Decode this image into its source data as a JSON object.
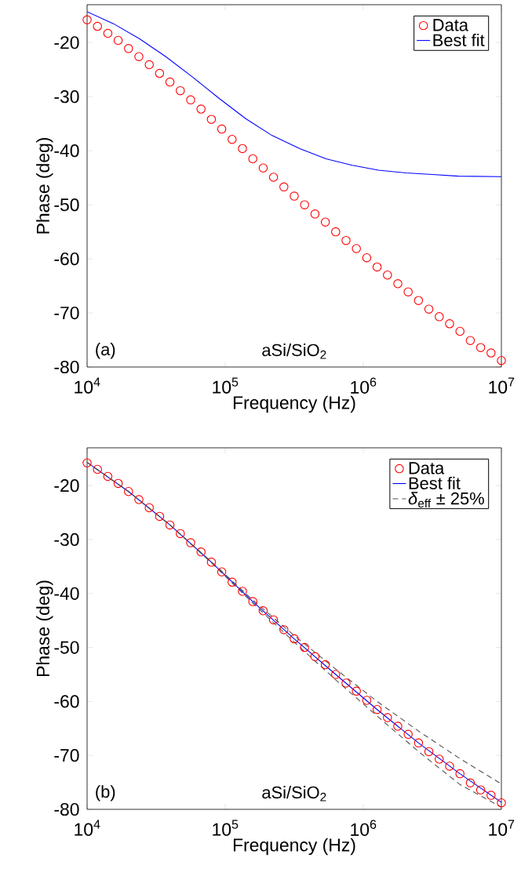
{
  "chart_data": [
    {
      "type": "scatter",
      "xlabel": "Frequency (Hz)",
      "ylabel": "Phase (deg)",
      "log": "x",
      "legend": "top right",
      "xlim": [
        10000,
        10000000
      ],
      "ylim": [
        -80,
        -13
      ],
      "xticks": [
        {
          "value": 10000,
          "label": "10$^{4}$"
        },
        {
          "value": 100000,
          "label": "10$^{5}$"
        },
        {
          "value": 1000000,
          "label": "10$^{6}$"
        },
        {
          "value": 10000000,
          "label": "10$^{7}$"
        }
      ],
      "yticks": [
        -80,
        -70,
        -60,
        -50,
        -40,
        -30,
        -20
      ],
      "annotations": [
        "(a)",
        "aSi/SiO$_{2}$"
      ],
      "x": [
        10000,
        11885,
        14125,
        16788,
        19953,
        23714,
        28184,
        33497,
        39811,
        47315,
        56234,
        66834,
        79433,
        94406,
        112202,
        133352,
        158489,
        188365,
        223872,
        266073,
        316228,
        375837,
        446684,
        530884,
        630957,
        749894,
        891251,
        1059254,
        1258925,
        1496236,
        1778279,
        2113489,
        2511886,
        2985383,
        3548134,
        4216965,
        5011872,
        5956621,
        7079458,
        8413951,
        10000000
      ],
      "series": [
        {
          "name": "Data",
          "color": "#ff0000",
          "marker": "circle",
          "values": [
            -15.8,
            -17.0,
            -18.3,
            -19.6,
            -21.1,
            -22.6,
            -24.1,
            -25.7,
            -27.3,
            -28.9,
            -30.6,
            -32.3,
            -34.2,
            -36.0,
            -37.9,
            -39.6,
            -41.5,
            -43.2,
            -44.9,
            -46.7,
            -48.4,
            -50.0,
            -51.7,
            -53.2,
            -55.0,
            -56.6,
            -58.1,
            -59.8,
            -61.5,
            -63.0,
            -64.6,
            -66.1,
            -67.7,
            -69.3,
            -70.7,
            -72.0,
            -73.4,
            -75.1,
            -76.4,
            -77.4,
            -78.8
          ]
        },
        {
          "name": "Best fit",
          "type": "line",
          "color": "#0000ff",
          "line_style": "solid",
          "x": [
            10000,
            15488,
            23988,
            37154,
            58884,
            91201,
            141254,
            218776,
            346737,
            537032,
            831764,
            1288250,
            2041738,
            3162278,
            4897788,
            10000000
          ],
          "values": [
            -14.3,
            -16.5,
            -19.3,
            -22.6,
            -26.5,
            -30.4,
            -34.1,
            -37.2,
            -39.6,
            -41.5,
            -42.7,
            -43.6,
            -44.1,
            -44.4,
            -44.7,
            -44.8
          ]
        }
      ]
    },
    {
      "type": "scatter",
      "xlabel": "Frequency (Hz)",
      "ylabel": "Phase (deg)",
      "log": "x",
      "legend": "top right",
      "xlim": [
        10000,
        10000000
      ],
      "ylim": [
        -80,
        -13
      ],
      "xticks": [
        {
          "value": 10000,
          "label": "10$^{4}$"
        },
        {
          "value": 100000,
          "label": "10$^{5}$"
        },
        {
          "value": 1000000,
          "label": "10$^{6}$"
        },
        {
          "value": 10000000,
          "label": "10$^{7}$"
        }
      ],
      "yticks": [
        -80,
        -70,
        -60,
        -50,
        -40,
        -30,
        -20
      ],
      "annotations": [
        "(b)",
        "aSi/SiO$_{2}$"
      ],
      "x": [
        10000,
        11885,
        14125,
        16788,
        19953,
        23714,
        28184,
        33497,
        39811,
        47315,
        56234,
        66834,
        79433,
        94406,
        112202,
        133352,
        158489,
        188365,
        223872,
        266073,
        316228,
        375837,
        446684,
        530884,
        630957,
        749894,
        891251,
        1059254,
        1258925,
        1496236,
        1778279,
        2113489,
        2511886,
        2985383,
        3548134,
        4216965,
        5011872,
        5956621,
        7079458,
        8413951,
        10000000
      ],
      "series": [
        {
          "name": "Data",
          "color": "#ff0000",
          "marker": "circle",
          "values": [
            -15.8,
            -17.0,
            -18.3,
            -19.6,
            -21.1,
            -22.6,
            -24.1,
            -25.7,
            -27.3,
            -28.9,
            -30.6,
            -32.3,
            -34.2,
            -36.0,
            -37.9,
            -39.6,
            -41.5,
            -43.2,
            -44.9,
            -46.7,
            -48.4,
            -50.0,
            -51.7,
            -53.2,
            -55.0,
            -56.6,
            -58.1,
            -59.8,
            -61.5,
            -63.0,
            -64.6,
            -66.1,
            -67.7,
            -69.3,
            -70.7,
            -72.0,
            -73.4,
            -75.1,
            -76.4,
            -77.4,
            -78.8
          ]
        },
        {
          "name": "Best fit",
          "type": "line",
          "color": "#0000ff",
          "line_style": "solid",
          "x": [
            10000,
            19953,
            39811,
            79433,
            158489,
            316228,
            630957,
            1258925,
            2511886,
            5011872,
            10000000
          ],
          "values": [
            -15.7,
            -21.1,
            -27.3,
            -34.2,
            -41.5,
            -48.4,
            -55.0,
            -61.5,
            -67.7,
            -73.4,
            -78.7
          ]
        },
        {
          "name": "*δ*$_{eff}$ ± 25%",
          "type": "line",
          "color": "#555555",
          "line_style": "dashed",
          "x": [
            10000,
            19953,
            39811,
            79433,
            158489,
            316228,
            630957,
            1258925,
            2511886,
            5011872,
            10000000
          ],
          "values": [
            -15.7,
            -21.1,
            -27.3,
            -34.1,
            -41.2,
            -47.8,
            -54.0,
            -60.0,
            -65.5,
            -70.6,
            -75.3
          ]
        },
        {
          "type": "line",
          "color": "#555555",
          "line_style": "dashed",
          "x": [
            10000,
            19953,
            39811,
            79433,
            158489,
            316228,
            630957,
            1258925,
            2511886,
            5011872,
            10000000
          ],
          "values": [
            -15.7,
            -21.1,
            -27.3,
            -34.3,
            -41.8,
            -49.0,
            -56.0,
            -62.7,
            -69.3,
            -75.4,
            -79.6
          ]
        }
      ]
    }
  ]
}
